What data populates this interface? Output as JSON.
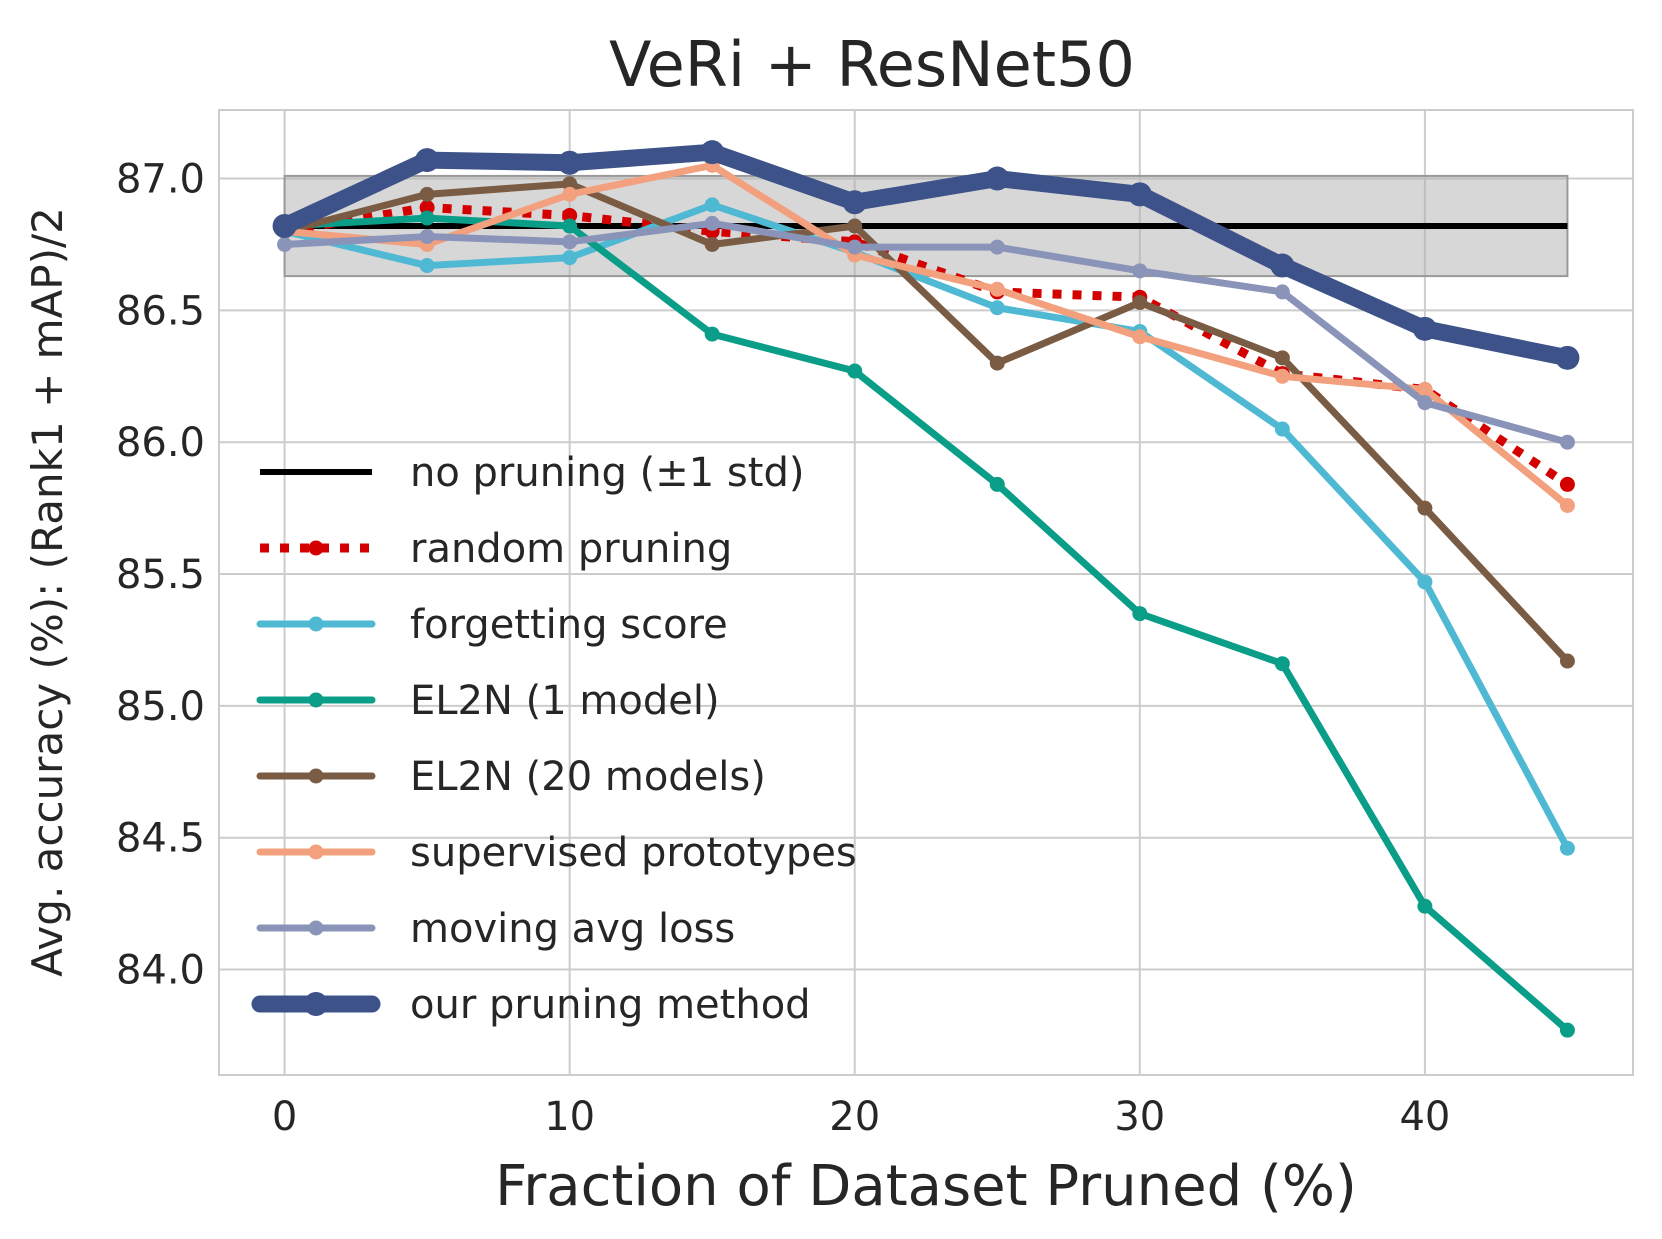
{
  "chart_data": {
    "type": "line",
    "title": "VeRi + ResNet50",
    "xlabel": "Fraction of Dataset Pruned (%)",
    "ylabel": "Avg. accuracy (%): (Rank1 + mAP)/2",
    "xlim": [
      -2.3,
      47.3
    ],
    "ylim": [
      83.6,
      87.26
    ],
    "xticks": [
      0,
      10,
      20,
      30,
      40
    ],
    "xtick_labels": [
      "0",
      "10",
      "20",
      "30",
      "40"
    ],
    "yticks": [
      84.0,
      84.5,
      85.0,
      85.5,
      86.0,
      86.5,
      87.0
    ],
    "ytick_labels": [
      "84.0",
      "84.5",
      "85.0",
      "85.5",
      "86.0",
      "86.5",
      "87.0"
    ],
    "grid": true,
    "legend_position": "lower-left",
    "baseline": {
      "name": "no pruning (±1 std)",
      "value": 86.82,
      "std": 0.19,
      "x_range": [
        0,
        45
      ],
      "color": "#000000"
    },
    "series": [
      {
        "name": "random pruning",
        "color": "#d40000",
        "style": "dotted",
        "x": [
          0,
          5,
          10,
          15,
          20,
          25,
          30,
          35,
          40,
          45
        ],
        "values": [
          86.8,
          86.89,
          86.86,
          86.8,
          86.76,
          86.57,
          86.55,
          86.26,
          86.2,
          85.84
        ]
      },
      {
        "name": "forgetting score",
        "color": "#4fb9d4",
        "style": "solid",
        "x": [
          0,
          5,
          10,
          15,
          20,
          25,
          30,
          35,
          40,
          45
        ],
        "values": [
          86.8,
          86.67,
          86.7,
          86.9,
          86.72,
          86.51,
          86.42,
          86.05,
          85.47,
          84.46
        ]
      },
      {
        "name": "EL2N (1 model)",
        "color": "#0a9d88",
        "style": "solid",
        "x": [
          0,
          5,
          10,
          15,
          20,
          25,
          30,
          35,
          40,
          45
        ],
        "values": [
          86.82,
          86.85,
          86.82,
          86.41,
          86.27,
          85.84,
          85.35,
          85.16,
          84.24,
          83.77
        ]
      },
      {
        "name": "EL2N (20 models)",
        "color": "#7a5c44",
        "style": "solid",
        "x": [
          0,
          5,
          10,
          15,
          20,
          25,
          30,
          35,
          40,
          45
        ],
        "values": [
          86.8,
          86.94,
          86.98,
          86.75,
          86.82,
          86.3,
          86.53,
          86.32,
          85.75,
          85.17
        ]
      },
      {
        "name": "supervised prototypes",
        "color": "#f2a07e",
        "style": "solid",
        "x": [
          0,
          5,
          10,
          15,
          20,
          25,
          30,
          35,
          40,
          45
        ],
        "values": [
          86.8,
          86.75,
          86.94,
          87.05,
          86.71,
          86.58,
          86.4,
          86.25,
          86.2,
          85.76
        ]
      },
      {
        "name": "moving avg loss",
        "color": "#8a94b8",
        "style": "solid",
        "x": [
          0,
          5,
          10,
          15,
          20,
          25,
          30,
          35,
          40,
          45
        ],
        "values": [
          86.75,
          86.78,
          86.76,
          86.83,
          86.74,
          86.74,
          86.65,
          86.57,
          86.15,
          86.0
        ]
      },
      {
        "name": "our pruning method",
        "color": "#3c5289",
        "style": "thick",
        "x": [
          0,
          5,
          10,
          15,
          20,
          25,
          30,
          35,
          40,
          45
        ],
        "values": [
          86.82,
          87.07,
          87.06,
          87.1,
          86.91,
          87.0,
          86.94,
          86.67,
          86.43,
          86.32
        ]
      }
    ]
  }
}
